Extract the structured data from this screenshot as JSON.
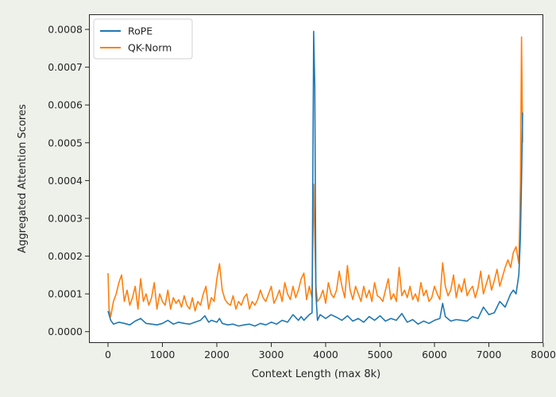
{
  "chart_data": {
    "type": "line",
    "title": "",
    "xlabel": "Context Length (max 8k)",
    "ylabel": "Aggregated Attention Scores",
    "xlim": [
      -350,
      8000
    ],
    "ylim": [
      -3e-05,
      0.00084
    ],
    "xticks": [
      0,
      1000,
      2000,
      3000,
      4000,
      5000,
      6000,
      7000,
      8000
    ],
    "xtick_labels": [
      "0",
      "1000",
      "2000",
      "3000",
      "4000",
      "5000",
      "6000",
      "7000",
      "8000"
    ],
    "yticks": [
      0.0,
      0.0001,
      0.0002,
      0.0003,
      0.0004,
      0.0005,
      0.0006,
      0.0007,
      0.0008
    ],
    "ytick_labels": [
      "0.0000",
      "0.0001",
      "0.0002",
      "0.0003",
      "0.0004",
      "0.0005",
      "0.0006",
      "0.0007",
      "0.0008"
    ],
    "grid": false,
    "legend": "top-left",
    "series": [
      {
        "name": "RoPE",
        "color": "#1f77b4",
        "x": [
          0,
          50,
          100,
          200,
          300,
          400,
          500,
          600,
          700,
          800,
          900,
          1000,
          1100,
          1200,
          1300,
          1400,
          1500,
          1600,
          1700,
          1780,
          1850,
          1900,
          2000,
          2050,
          2100,
          2200,
          2300,
          2400,
          2500,
          2600,
          2700,
          2800,
          2900,
          3000,
          3100,
          3200,
          3300,
          3400,
          3500,
          3550,
          3600,
          3700,
          3750,
          3780,
          3800,
          3820,
          3850,
          3900,
          4000,
          4100,
          4200,
          4300,
          4400,
          4500,
          4600,
          4700,
          4800,
          4900,
          5000,
          5100,
          5200,
          5300,
          5400,
          5500,
          5600,
          5700,
          5800,
          5900,
          6000,
          6100,
          6150,
          6200,
          6300,
          6400,
          6500,
          6600,
          6700,
          6800,
          6900,
          7000,
          7100,
          7200,
          7300,
          7400,
          7450,
          7500,
          7550,
          7580,
          7600,
          7620
        ],
        "values": [
          5.5e-05,
          3e-05,
          2e-05,
          2.5e-05,
          2.2e-05,
          1.8e-05,
          2.8e-05,
          3.5e-05,
          2.2e-05,
          2e-05,
          1.8e-05,
          2.2e-05,
          3e-05,
          2e-05,
          2.5e-05,
          2.2e-05,
          2e-05,
          2.5e-05,
          3e-05,
          4.2e-05,
          2.5e-05,
          3e-05,
          2.5e-05,
          3.5e-05,
          2.2e-05,
          1.8e-05,
          2e-05,
          1.5e-05,
          1.8e-05,
          2e-05,
          1.5e-05,
          2.2e-05,
          1.8e-05,
          2.5e-05,
          2e-05,
          3e-05,
          2.5e-05,
          4.5e-05,
          3e-05,
          4e-05,
          3e-05,
          4.5e-05,
          5e-05,
          0.000795,
          0.00065,
          0.0001,
          3e-05,
          4.5e-05,
          3.5e-05,
          4.5e-05,
          3.8e-05,
          3e-05,
          4.2e-05,
          2.8e-05,
          3.5e-05,
          2.5e-05,
          4e-05,
          3e-05,
          4.2e-05,
          2.8e-05,
          3.5e-05,
          3e-05,
          4.8e-05,
          2.5e-05,
          3.2e-05,
          2e-05,
          2.8e-05,
          2.2e-05,
          3e-05,
          3.5e-05,
          7.5e-05,
          4e-05,
          2.8e-05,
          3.2e-05,
          3e-05,
          2.8e-05,
          4e-05,
          3.5e-05,
          6.5e-05,
          4.5e-05,
          5e-05,
          8e-05,
          6.5e-05,
          0.0001,
          0.00011,
          0.0001,
          0.00015,
          0.00025,
          0.0004,
          0.00058
        ]
      },
      {
        "name": "QK-Norm",
        "color": "#ff7f0e",
        "x": [
          0,
          20,
          50,
          100,
          150,
          200,
          250,
          300,
          350,
          400,
          450,
          500,
          550,
          600,
          650,
          700,
          750,
          800,
          850,
          900,
          950,
          1000,
          1050,
          1100,
          1150,
          1200,
          1250,
          1300,
          1350,
          1400,
          1450,
          1500,
          1550,
          1600,
          1650,
          1700,
          1750,
          1800,
          1850,
          1900,
          1950,
          2000,
          2050,
          2100,
          2150,
          2200,
          2250,
          2300,
          2350,
          2400,
          2450,
          2500,
          2550,
          2600,
          2650,
          2700,
          2750,
          2800,
          2850,
          2900,
          2950,
          3000,
          3050,
          3100,
          3150,
          3200,
          3250,
          3300,
          3350,
          3400,
          3450,
          3500,
          3550,
          3600,
          3650,
          3700,
          3750,
          3780,
          3800,
          3820,
          3850,
          3900,
          3950,
          4000,
          4050,
          4100,
          4150,
          4200,
          4250,
          4300,
          4350,
          4400,
          4450,
          4500,
          4550,
          4600,
          4650,
          4700,
          4750,
          4800,
          4850,
          4900,
          4950,
          5000,
          5050,
          5100,
          5150,
          5200,
          5250,
          5300,
          5350,
          5400,
          5450,
          5500,
          5550,
          5600,
          5650,
          5700,
          5750,
          5800,
          5850,
          5900,
          5950,
          6000,
          6050,
          6100,
          6150,
          6200,
          6250,
          6300,
          6350,
          6400,
          6450,
          6500,
          6550,
          6600,
          6650,
          6700,
          6750,
          6800,
          6850,
          6900,
          6950,
          7000,
          7050,
          7100,
          7150,
          7200,
          7250,
          7300,
          7350,
          7400,
          7450,
          7500,
          7550,
          7580,
          7600,
          7620
        ],
        "values": [
          0.000155,
          6e-05,
          4e-05,
          8e-05,
          0.0001,
          0.00013,
          0.00015,
          8e-05,
          0.00011,
          7e-05,
          9e-05,
          0.00012,
          6e-05,
          0.00014,
          8e-05,
          0.0001,
          7e-05,
          9e-05,
          0.00013,
          6e-05,
          0.0001,
          8e-05,
          7e-05,
          0.00011,
          6e-05,
          9e-05,
          7.5e-05,
          8.5e-05,
          6.5e-05,
          9.5e-05,
          7e-05,
          6e-05,
          9e-05,
          5.5e-05,
          8e-05,
          7e-05,
          0.0001,
          0.00012,
          6e-05,
          9e-05,
          8e-05,
          0.00014,
          0.00018,
          0.00011,
          8.5e-05,
          7.5e-05,
          7e-05,
          9.5e-05,
          6e-05,
          8e-05,
          7e-05,
          9e-05,
          0.0001,
          6e-05,
          8e-05,
          7e-05,
          8.5e-05,
          0.00011,
          9e-05,
          8e-05,
          0.0001,
          0.00012,
          7.5e-05,
          9e-05,
          0.00011,
          8e-05,
          0.00013,
          0.0001,
          8.5e-05,
          0.00012,
          9e-05,
          0.00011,
          0.00014,
          0.000155,
          8.5e-05,
          0.00012,
          9e-05,
          0.00039,
          0.00025,
          0.00012,
          8e-05,
          9e-05,
          0.00011,
          7.5e-05,
          0.00013,
          0.0001,
          9e-05,
          0.00011,
          0.00016,
          0.00012,
          9e-05,
          0.000175,
          0.00011,
          8.5e-05,
          0.00012,
          0.0001,
          8e-05,
          0.00012,
          9e-05,
          0.00011,
          8e-05,
          0.00013,
          9.5e-05,
          9e-05,
          8e-05,
          0.00011,
          0.00014,
          8.5e-05,
          0.0001,
          8e-05,
          0.00017,
          9.5e-05,
          0.00011,
          9e-05,
          0.00012,
          8.5e-05,
          0.0001,
          8e-05,
          0.00013,
          9.5e-05,
          0.00011,
          8e-05,
          9e-05,
          0.00012,
          0.0001,
          8.5e-05,
          0.000182,
          0.00012,
          9.5e-05,
          0.00011,
          0.00015,
          9e-05,
          0.000125,
          0.000105,
          0.00014,
          9.5e-05,
          0.00011,
          0.00012,
          9e-05,
          0.000115,
          0.00016,
          0.0001,
          0.000125,
          0.00015,
          0.00011,
          0.000135,
          0.000165,
          0.00012,
          0.000145,
          0.00017,
          0.00019,
          0.00017,
          0.00021,
          0.000225,
          0.00018,
          0.00038,
          0.00078,
          0.0005
        ]
      }
    ]
  }
}
